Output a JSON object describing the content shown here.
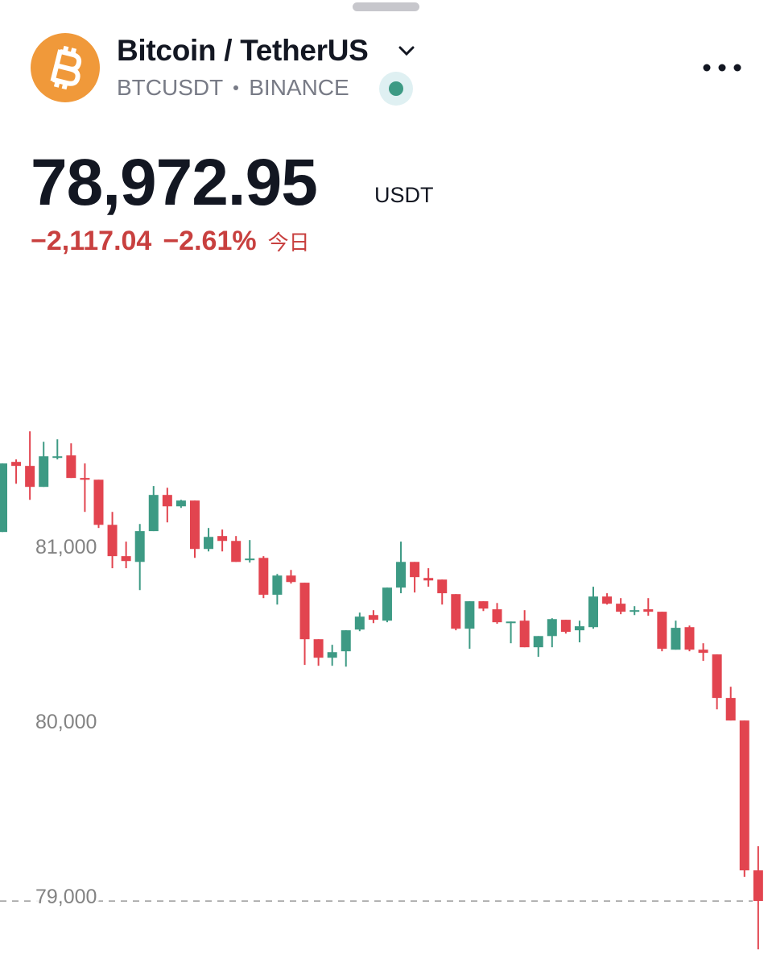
{
  "header": {
    "title": "Bitcoin / TetherUS",
    "symbol": "BTCUSDT",
    "exchange": "BINANCE"
  },
  "quote": {
    "price": "78,972.95",
    "currency": "USDT",
    "change": "−2,117.04",
    "change_percent": "−2.61%",
    "period": "今日"
  },
  "chart_data": {
    "type": "candlestick",
    "open": [
      81083,
      81484,
      81461,
      81341,
      81507,
      81521,
      81392,
      81382,
      81124,
      80945,
      80912,
      81088,
      81295,
      81230,
      81263,
      80986,
      81060,
      81032,
      80922,
      80935,
      80724,
      80834,
      80793,
      80470,
      80364,
      80401,
      80525,
      80608,
      80576,
      80765,
      80912,
      80820,
      80811,
      80728,
      80530,
      80687,
      80641,
      80562,
      80576,
      80424,
      80488,
      80581,
      80521,
      80539,
      80714,
      80673,
      80627,
      80641,
      80627,
      80410,
      80539,
      80410,
      80383,
      80134,
      80005,
      79148
    ],
    "high": [
      81475,
      81498,
      81659,
      81599,
      81613,
      81590,
      81475,
      81382,
      81198,
      81028,
      81129,
      81346,
      81336,
      81267,
      81263,
      81106,
      81097,
      81060,
      81037,
      80945,
      80843,
      80866,
      80793,
      80470,
      80438,
      80521,
      80622,
      80636,
      80765,
      81028,
      80912,
      80876,
      80811,
      80728,
      80687,
      80687,
      80677,
      80571,
      80636,
      80488,
      80590,
      80581,
      80576,
      80770,
      80733,
      80705,
      80659,
      80705,
      80627,
      80576,
      80548,
      80447,
      80383,
      80198,
      80005,
      79286
    ],
    "low": [
      81083,
      81359,
      81267,
      81341,
      81498,
      81392,
      81198,
      81106,
      80876,
      80876,
      80751,
      81088,
      81138,
      81221,
      80935,
      80972,
      80972,
      80912,
      80908,
      80705,
      80668,
      80788,
      80323,
      80318,
      80318,
      80313,
      80516,
      80562,
      80567,
      80733,
      80737,
      80770,
      80668,
      80521,
      80415,
      80631,
      80558,
      80447,
      80424,
      80369,
      80424,
      80502,
      80452,
      80530,
      80668,
      80613,
      80608,
      80604,
      80401,
      80410,
      80401,
      80346,
      80069,
      80005,
      79111,
      78696
    ],
    "close": [
      81475,
      81461,
      81341,
      81516,
      81516,
      81392,
      81382,
      81124,
      80945,
      80917,
      81088,
      81295,
      81230,
      81263,
      80986,
      81055,
      81032,
      80912,
      80931,
      80724,
      80834,
      80797,
      80470,
      80364,
      80396,
      80521,
      80599,
      80581,
      80765,
      80912,
      80825,
      80806,
      80733,
      80530,
      80687,
      80645,
      80567,
      80571,
      80424,
      80488,
      80585,
      80512,
      80544,
      80714,
      80673,
      80627,
      80636,
      80627,
      80415,
      80535,
      80410,
      80392,
      80134,
      80005,
      79148,
      78973
    ],
    "ylim": [
      78600,
      81800
    ],
    "yticks": [
      {
        "value": 79000,
        "label": "79,000"
      },
      {
        "value": 80000,
        "label": "80,000"
      },
      {
        "value": 81000,
        "label": "81,000"
      }
    ],
    "up_color": "#3d9a84",
    "down_color": "#e2444f",
    "price_line": 78972.95
  }
}
